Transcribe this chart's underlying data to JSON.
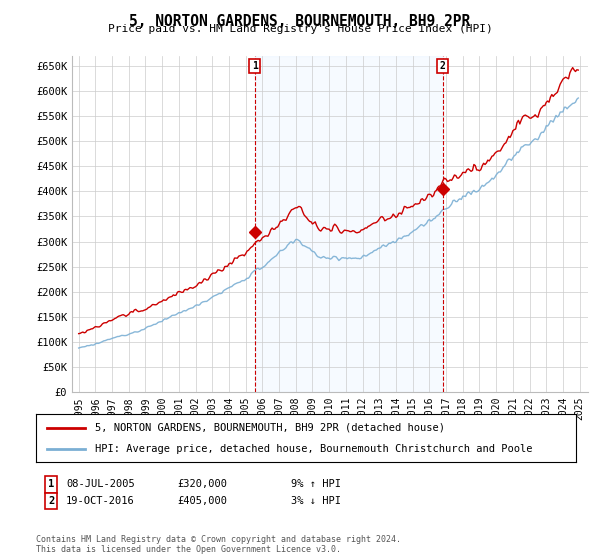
{
  "title": "5, NORTON GARDENS, BOURNEMOUTH, BH9 2PR",
  "subtitle": "Price paid vs. HM Land Registry's House Price Index (HPI)",
  "yticks": [
    0,
    50000,
    100000,
    150000,
    200000,
    250000,
    300000,
    350000,
    400000,
    450000,
    500000,
    550000,
    600000,
    650000
  ],
  "ylim": [
    0,
    670000
  ],
  "hpi_color": "#7bafd4",
  "price_color": "#cc0000",
  "background_color": "#ffffff",
  "grid_color": "#cccccc",
  "shade_color": "#ddeeff",
  "ann1_year": 2005.54,
  "ann2_year": 2016.79,
  "ann1_price": 320000,
  "ann2_price": 405000,
  "ann1_label": "1",
  "ann2_label": "2",
  "ann1_date_str": "08-JUL-2005",
  "ann2_date_str": "19-OCT-2016",
  "ann1_price_str": "£320,000",
  "ann2_price_str": "£405,000",
  "ann1_pct_str": "9% ↑ HPI",
  "ann2_pct_str": "3% ↓ HPI",
  "legend_line1": "5, NORTON GARDENS, BOURNEMOUTH, BH9 2PR (detached house)",
  "legend_line2": "HPI: Average price, detached house, Bournemouth Christchurch and Poole",
  "footer": "Contains HM Land Registry data © Crown copyright and database right 2024.\nThis data is licensed under the Open Government Licence v3.0.",
  "xstart_year": 1995,
  "xend_year": 2025
}
